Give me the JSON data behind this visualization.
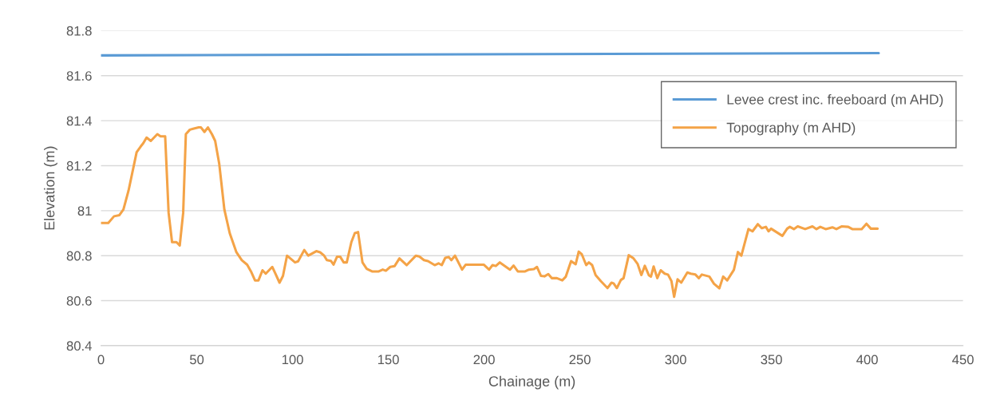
{
  "chart_data": {
    "type": "line",
    "xlabel": "Chainage (m)",
    "ylabel": "Elevation (m)",
    "xlim": [
      0,
      450
    ],
    "xticks": [
      0,
      50,
      100,
      150,
      200,
      250,
      300,
      350,
      400,
      450
    ],
    "ylim": [
      80.4,
      81.8
    ],
    "yticks": [
      80.4,
      80.6,
      80.8,
      81,
      81.2,
      81.4,
      81.6,
      81.8
    ],
    "grid": "y",
    "legend": "top right",
    "marker": "none",
    "line_style": "solid",
    "series": [
      {
        "name": "Levee crest inc. freeboard (m AHD)",
        "color": "#5b9bd5",
        "x": [
          0,
          406
        ],
        "values": [
          81.69,
          81.7
        ]
      },
      {
        "name": "Topography (m AHD)",
        "color": "#f4a347",
        "x": [
          0,
          3.8,
          6.8,
          9.6,
          11.7,
          14.4,
          18.6,
          20.7,
          22.1,
          23.8,
          26.0,
          29.4,
          31.1,
          33.5,
          35.3,
          37.1,
          39.4,
          41.1,
          42.9,
          44.3,
          46.4,
          48.5,
          51.0,
          52.2,
          54.0,
          55.8,
          57.9,
          59.6,
          61.7,
          64.4,
          67.2,
          70.7,
          73.5,
          76.3,
          78.3,
          80.4,
          82.2,
          84.3,
          86.0,
          89.4,
          90.8,
          93.2,
          95.0,
          97.1,
          99.2,
          101.3,
          102.9,
          106.1,
          108.2,
          112.4,
          114.4,
          116.5,
          117.9,
          120.0,
          121.4,
          123.2,
          124.9,
          126.7,
          128.3,
          130.7,
          132.5,
          134.2,
          136.5,
          138.7,
          141.5,
          145.0,
          147.1,
          148.7,
          151.0,
          153.3,
          155.8,
          159.6,
          164.4,
          166.2,
          168.6,
          170.7,
          174.2,
          176.2,
          177.9,
          179.7,
          181.5,
          182.9,
          184.8,
          188.5,
          190.4,
          199.8,
          202.6,
          204.4,
          206.1,
          208.2,
          213.5,
          215.4,
          217.6,
          221.4,
          223.4,
          226.0,
          227.6,
          229.7,
          231.5,
          233.5,
          235.3,
          238.0,
          240.8,
          242.6,
          245.4,
          247.8,
          249.4,
          251.0,
          253.3,
          254.7,
          256.4,
          258.2,
          261.0,
          264.4,
          266.5,
          267.6,
          269.3,
          271.4,
          272.8,
          275.5,
          278.0,
          280.1,
          282.1,
          283.9,
          286.0,
          287.1,
          288.5,
          290.4,
          292.2,
          294.3,
          296.0,
          297.8,
          299.2,
          301.0,
          302.9,
          306.1,
          307.9,
          310.3,
          312.1,
          313.7,
          317.6,
          320.0,
          322.8,
          324.8,
          326.9,
          330.4,
          332.5,
          334.3,
          338.0,
          340.1,
          342.9,
          345.0,
          347.1,
          348.5,
          349.8,
          355.7,
          358.2,
          359.6,
          361.7,
          363.7,
          367.6,
          371.4,
          373.5,
          375.5,
          378.3,
          381.8,
          383.9,
          386.6,
          390.1,
          392.2,
          397.1,
          399.6,
          401.9,
          405.4
        ],
        "values": [
          80.945,
          80.945,
          80.975,
          80.98,
          81.005,
          81.09,
          81.26,
          81.285,
          81.3,
          81.325,
          81.31,
          81.34,
          81.33,
          81.33,
          80.99,
          80.86,
          80.86,
          80.845,
          80.99,
          81.34,
          81.36,
          81.365,
          81.37,
          81.37,
          81.35,
          81.37,
          81.34,
          81.31,
          81.21,
          81.005,
          80.9,
          80.815,
          80.78,
          80.76,
          80.73,
          80.69,
          80.69,
          80.735,
          80.72,
          80.75,
          80.725,
          80.68,
          80.71,
          80.8,
          80.785,
          80.77,
          80.775,
          80.825,
          80.8,
          80.82,
          80.815,
          80.8,
          80.78,
          80.777,
          80.76,
          80.795,
          80.795,
          80.77,
          80.77,
          80.86,
          80.9,
          80.905,
          80.77,
          80.742,
          80.73,
          80.73,
          80.738,
          80.733,
          80.75,
          80.754,
          80.788,
          80.758,
          80.8,
          80.796,
          80.78,
          80.776,
          80.758,
          80.766,
          80.758,
          80.79,
          80.794,
          80.78,
          80.8,
          80.738,
          80.76,
          80.76,
          80.738,
          80.758,
          80.754,
          80.77,
          80.738,
          80.756,
          80.73,
          80.73,
          80.738,
          80.74,
          80.75,
          80.71,
          80.708,
          80.718,
          80.7,
          80.7,
          80.69,
          80.706,
          80.776,
          80.762,
          80.818,
          80.806,
          80.758,
          80.77,
          80.758,
          80.714,
          80.686,
          80.656,
          80.68,
          80.677,
          80.656,
          80.692,
          80.7,
          80.802,
          80.788,
          80.764,
          80.714,
          80.755,
          80.713,
          80.707,
          80.752,
          80.7,
          80.735,
          80.72,
          80.716,
          80.687,
          80.617,
          80.695,
          80.68,
          80.725,
          80.72,
          80.716,
          80.7,
          80.716,
          80.707,
          80.675,
          80.655,
          80.707,
          80.69,
          80.737,
          80.816,
          80.8,
          80.918,
          80.908,
          80.94,
          80.922,
          80.928,
          80.908,
          80.92,
          80.888,
          80.92,
          80.928,
          80.918,
          80.93,
          80.918,
          80.93,
          80.918,
          80.928,
          80.918,
          80.926,
          80.918,
          80.93,
          80.928,
          80.918,
          80.918,
          80.942,
          80.92,
          80.92
        ]
      }
    ]
  }
}
